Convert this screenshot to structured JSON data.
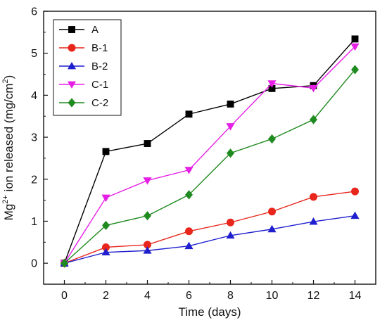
{
  "chart_data": {
    "type": "line",
    "xlabel": "Time (days)",
    "ylabel_parts": {
      "prefix": "Mg",
      "superscript": "2+",
      "middle": " ion released (mg/cm",
      "unit_superscript": "2",
      "suffix": ")"
    },
    "xlim": [
      -1,
      15
    ],
    "ylim": [
      -0.5,
      6
    ],
    "xticks": [
      0,
      2,
      4,
      6,
      8,
      10,
      12,
      14
    ],
    "yticks": [
      0,
      1,
      2,
      3,
      4,
      5,
      6
    ],
    "x": [
      0,
      2,
      4,
      6,
      8,
      10,
      12,
      14
    ],
    "legend_position": "top-left",
    "grid": false,
    "series": [
      {
        "name": "A",
        "color": "#000000",
        "marker": "square",
        "values": [
          0,
          2.66,
          2.85,
          3.55,
          3.79,
          4.16,
          4.23,
          5.34
        ]
      },
      {
        "name": "B-1",
        "color": "#e8261c",
        "marker": "circle",
        "values": [
          0,
          0.38,
          0.44,
          0.76,
          0.97,
          1.23,
          1.58,
          1.71
        ]
      },
      {
        "name": "B-2",
        "color": "#1f1fcf",
        "marker": "triangle-up",
        "values": [
          0,
          0.26,
          0.3,
          0.41,
          0.66,
          0.81,
          0.99,
          1.13
        ]
      },
      {
        "name": "C-1",
        "color": "#e61ee6",
        "marker": "triangle-down",
        "values": [
          0,
          1.56,
          1.97,
          2.22,
          3.26,
          4.28,
          4.17,
          5.16
        ]
      },
      {
        "name": "C-2",
        "color": "#1f8a1f",
        "marker": "diamond",
        "values": [
          0,
          0.9,
          1.13,
          1.63,
          2.62,
          2.96,
          3.42,
          4.61
        ]
      }
    ]
  }
}
